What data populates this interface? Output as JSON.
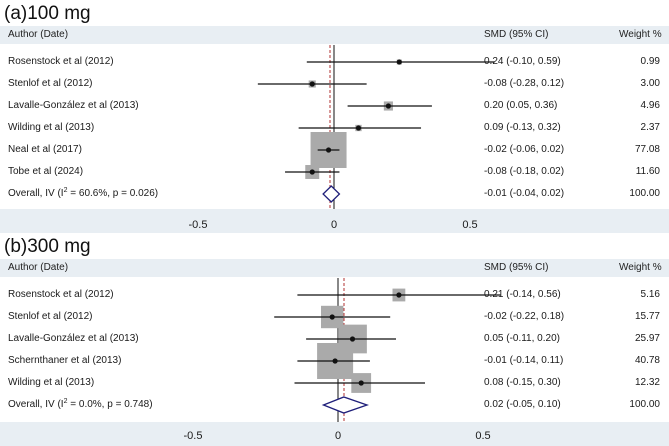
{
  "chart_data": [
    {
      "type": "forest",
      "title": "(a)100 mg",
      "headers": {
        "author": "Author (Date)",
        "smd": "SMD (95% CI)",
        "weight": "Weight %"
      },
      "studies": [
        {
          "label": "Rosenstock et al (2012)",
          "est": 0.24,
          "lo": -0.1,
          "hi": 0.59,
          "ci_text": "0.24 (-0.10, 0.59)",
          "weight": 0.99,
          "weight_text": "0.99"
        },
        {
          "label": "Stenlof et al (2012)",
          "est": -0.08,
          "lo": -0.28,
          "hi": 0.12,
          "ci_text": "-0.08 (-0.28, 0.12)",
          "weight": 3.0,
          "weight_text": "3.00"
        },
        {
          "label": "Lavalle-González et al (2013)",
          "est": 0.2,
          "lo": 0.05,
          "hi": 0.36,
          "ci_text": "0.20 (0.05, 0.36)",
          "weight": 4.96,
          "weight_text": "4.96"
        },
        {
          "label": "Wilding et al (2013)",
          "est": 0.09,
          "lo": -0.13,
          "hi": 0.32,
          "ci_text": "0.09 (-0.13, 0.32)",
          "weight": 2.37,
          "weight_text": "2.37"
        },
        {
          "label": "Neal et al (2017)",
          "est": -0.02,
          "lo": -0.06,
          "hi": 0.02,
          "ci_text": "-0.02 (-0.06, 0.02)",
          "weight": 77.08,
          "weight_text": "77.08"
        },
        {
          "label": "Tobe et al (2024)",
          "est": -0.08,
          "lo": -0.18,
          "hi": 0.02,
          "ci_text": "-0.08 (-0.18, 0.02)",
          "weight": 11.6,
          "weight_text": "11.60"
        }
      ],
      "overall": {
        "label_pre": "Overall, IV (I",
        "label_sup": "2",
        "label_post": " = 60.6%, p = 0.026)",
        "est": -0.01,
        "lo": -0.04,
        "hi": 0.02,
        "ci_text": "-0.01 (-0.04, 0.02)",
        "weight_text": "100.00"
      },
      "xticks": [
        -0.5,
        0,
        0.5
      ],
      "xtick_labels": [
        "-0.5",
        "0",
        "0.5"
      ],
      "xlim": [
        -0.75,
        0.75
      ],
      "null_line": 0,
      "colors": {
        "marker": "#aaaaaa",
        "diamond": "#1f1f7a",
        "dashed_line": "#b03030",
        "header_bg": "#e8eef3",
        "line": "#111111"
      }
    },
    {
      "type": "forest",
      "title": "(b)300 mg",
      "headers": {
        "author": "Author (Date)",
        "smd": "SMD (95% CI)",
        "weight": "Weight %"
      },
      "studies": [
        {
          "label": "Rosenstock et al (2012)",
          "est": 0.21,
          "lo": -0.14,
          "hi": 0.56,
          "ci_text": "0.21 (-0.14, 0.56)",
          "weight": 5.16,
          "weight_text": "5.16"
        },
        {
          "label": "Stenlof et al (2012)",
          "est": -0.02,
          "lo": -0.22,
          "hi": 0.18,
          "ci_text": "-0.02 (-0.22, 0.18)",
          "weight": 15.77,
          "weight_text": "15.77"
        },
        {
          "label": "Lavalle-González et al (2013)",
          "est": 0.05,
          "lo": -0.11,
          "hi": 0.2,
          "ci_text": "0.05 (-0.11, 0.20)",
          "weight": 25.97,
          "weight_text": "25.97"
        },
        {
          "label": "Schernthaner et al (2013)",
          "est": -0.01,
          "lo": -0.14,
          "hi": 0.11,
          "ci_text": "-0.01 (-0.14, 0.11)",
          "weight": 40.78,
          "weight_text": "40.78"
        },
        {
          "label": "Wilding et al (2013)",
          "est": 0.08,
          "lo": -0.15,
          "hi": 0.3,
          "ci_text": "0.08 (-0.15, 0.30)",
          "weight": 12.32,
          "weight_text": "12.32"
        }
      ],
      "overall": {
        "label_pre": "Overall, IV (I",
        "label_sup": "2",
        "label_post": " = 0.0%, p = 0.748)",
        "est": 0.02,
        "lo": -0.05,
        "hi": 0.1,
        "ci_text": "0.02 (-0.05, 0.10)",
        "weight_text": "100.00"
      },
      "xticks": [
        -0.5,
        0,
        0.5
      ],
      "xtick_labels": [
        "-0.5",
        "0",
        "0.5"
      ],
      "xlim": [
        -0.75,
        0.75
      ],
      "null_line": 0,
      "colors": {
        "marker": "#aaaaaa",
        "diamond": "#1f1f7a",
        "dashed_line": "#b03030",
        "header_bg": "#e8eef3",
        "line": "#111111"
      }
    }
  ]
}
